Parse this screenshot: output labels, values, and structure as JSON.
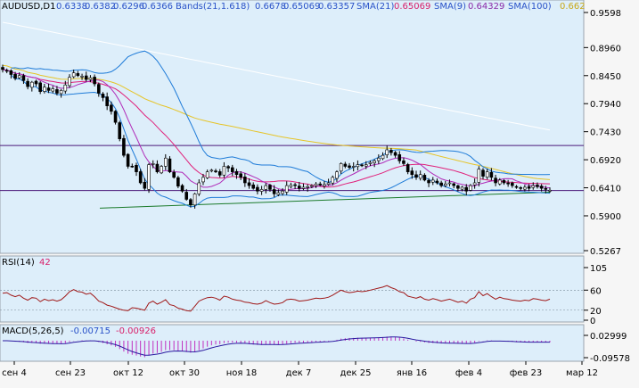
{
  "colors": {
    "panel_bg": "#ddeefa",
    "frame": "#9aa4ad",
    "text": "#000000",
    "bull": "#ffffff",
    "bear": "#000000",
    "wick": "#000000",
    "bands": "#1e7bd8",
    "sma21": "#e0207a",
    "sma9": "#b02ab8",
    "sma100": "#e6c428",
    "long_ma": "#ffffff",
    "hline": "#4b1a7a",
    "trendline": "#1a7a2a",
    "rsi": "#a01818",
    "macd_hist": "#c030c0",
    "macd_line": "#2a1aa0",
    "header_blue": "#2a52c8",
    "header_pink": "#d8206a",
    "header_purple": "#8a2aa8",
    "header_gold": "#c8a818"
  },
  "header": {
    "symbol": "AUDUSD,D1",
    "ohlc": [
      "0.6338",
      "0.6382",
      "0.6296",
      "0.6366"
    ],
    "bands_label": "Bands(21,1.618)",
    "bands_values": [
      "0.6678",
      "0.65069",
      "0.63357"
    ],
    "sma21_label": "SMA(21)",
    "sma21_value": "0.65069",
    "sma9_label": "SMA(9)",
    "sma9_value": "0.64329",
    "sma100_label": "SMA(100)",
    "sma100_value": "0.662"
  },
  "rsi_header": {
    "label": "RSI(14)",
    "value": "42"
  },
  "macd_header": {
    "label": "MACD(5,26,5)",
    "value1": "-0.00715",
    "value2": "-0.00926"
  },
  "chart_data": [
    {
      "type": "candlestick",
      "name": "AUDUSD,D1",
      "ylim": [
        0.5267,
        0.9598
      ],
      "yticks": [
        "0.9598",
        "0.8960",
        "0.8450",
        "0.7940",
        "0.7430",
        "0.6920",
        "0.6410",
        "0.5900",
        "0.5267"
      ],
      "xticks": [
        "сен 4",
        "сен 23",
        "окт 12",
        "окт 30",
        "ноя 18",
        "дек 7",
        "дек 25",
        "янв 16",
        "фев 4",
        "фев 23",
        "мар 12"
      ],
      "close": [
        0.856,
        0.854,
        0.847,
        0.84,
        0.845,
        0.836,
        0.825,
        0.833,
        0.83,
        0.816,
        0.824,
        0.818,
        0.821,
        0.813,
        0.818,
        0.828,
        0.842,
        0.85,
        0.845,
        0.844,
        0.838,
        0.841,
        0.83,
        0.813,
        0.805,
        0.79,
        0.78,
        0.76,
        0.73,
        0.7,
        0.68,
        0.68,
        0.67,
        0.65,
        0.64,
        0.683,
        0.685,
        0.67,
        0.68,
        0.695,
        0.67,
        0.66,
        0.644,
        0.635,
        0.62,
        0.61,
        0.63,
        0.65,
        0.66,
        0.67,
        0.673,
        0.67,
        0.664,
        0.68,
        0.677,
        0.67,
        0.665,
        0.66,
        0.65,
        0.645,
        0.64,
        0.635,
        0.638,
        0.645,
        0.638,
        0.63,
        0.632,
        0.635,
        0.645,
        0.646,
        0.645,
        0.64,
        0.642,
        0.643,
        0.645,
        0.648,
        0.646,
        0.647,
        0.65,
        0.66,
        0.67,
        0.685,
        0.68,
        0.678,
        0.68,
        0.683,
        0.682,
        0.683,
        0.687,
        0.69,
        0.695,
        0.7,
        0.71,
        0.705,
        0.7,
        0.69,
        0.685,
        0.67,
        0.665,
        0.66,
        0.665,
        0.655,
        0.65,
        0.655,
        0.65,
        0.645,
        0.648,
        0.65,
        0.645,
        0.64,
        0.642,
        0.635,
        0.645,
        0.65,
        0.675,
        0.662,
        0.67,
        0.66,
        0.65,
        0.655,
        0.65,
        0.648,
        0.645,
        0.642,
        0.64,
        0.642,
        0.64,
        0.645,
        0.643,
        0.64,
        0.638,
        0.6366
      ]
    },
    {
      "type": "line",
      "name": "RSI(14)",
      "ylim": [
        0,
        105
      ],
      "yticks": [
        "105",
        "60",
        "20",
        "0"
      ],
      "values": [
        54,
        55,
        50,
        47,
        50,
        44,
        40,
        45,
        44,
        37,
        42,
        39,
        41,
        38,
        41,
        48,
        57,
        61,
        57,
        56,
        52,
        54,
        47,
        38,
        35,
        30,
        28,
        25,
        22,
        20,
        19,
        25,
        24,
        22,
        20,
        34,
        38,
        32,
        36,
        41,
        31,
        29,
        24,
        22,
        19,
        18,
        28,
        38,
        42,
        45,
        46,
        44,
        40,
        48,
        46,
        42,
        40,
        39,
        36,
        35,
        33,
        32,
        34,
        39,
        35,
        32,
        33,
        35,
        41,
        42,
        41,
        38,
        39,
        40,
        42,
        44,
        43,
        44,
        46,
        50,
        55,
        60,
        57,
        55,
        56,
        58,
        57,
        58,
        60,
        62,
        64,
        66,
        69,
        65,
        62,
        57,
        55,
        48,
        46,
        44,
        47,
        42,
        40,
        43,
        41,
        38,
        40,
        42,
        39,
        36,
        38,
        34,
        42,
        45,
        57,
        49,
        53,
        47,
        42,
        46,
        43,
        42,
        40,
        39,
        38,
        40,
        39,
        43,
        42,
        40,
        39,
        42
      ]
    },
    {
      "type": "bar",
      "name": "MACD(5,26,5)",
      "ylim": [
        -0.09578,
        0.02999
      ],
      "yticks": [
        "0.02999",
        "-0.09578"
      ]
    }
  ]
}
